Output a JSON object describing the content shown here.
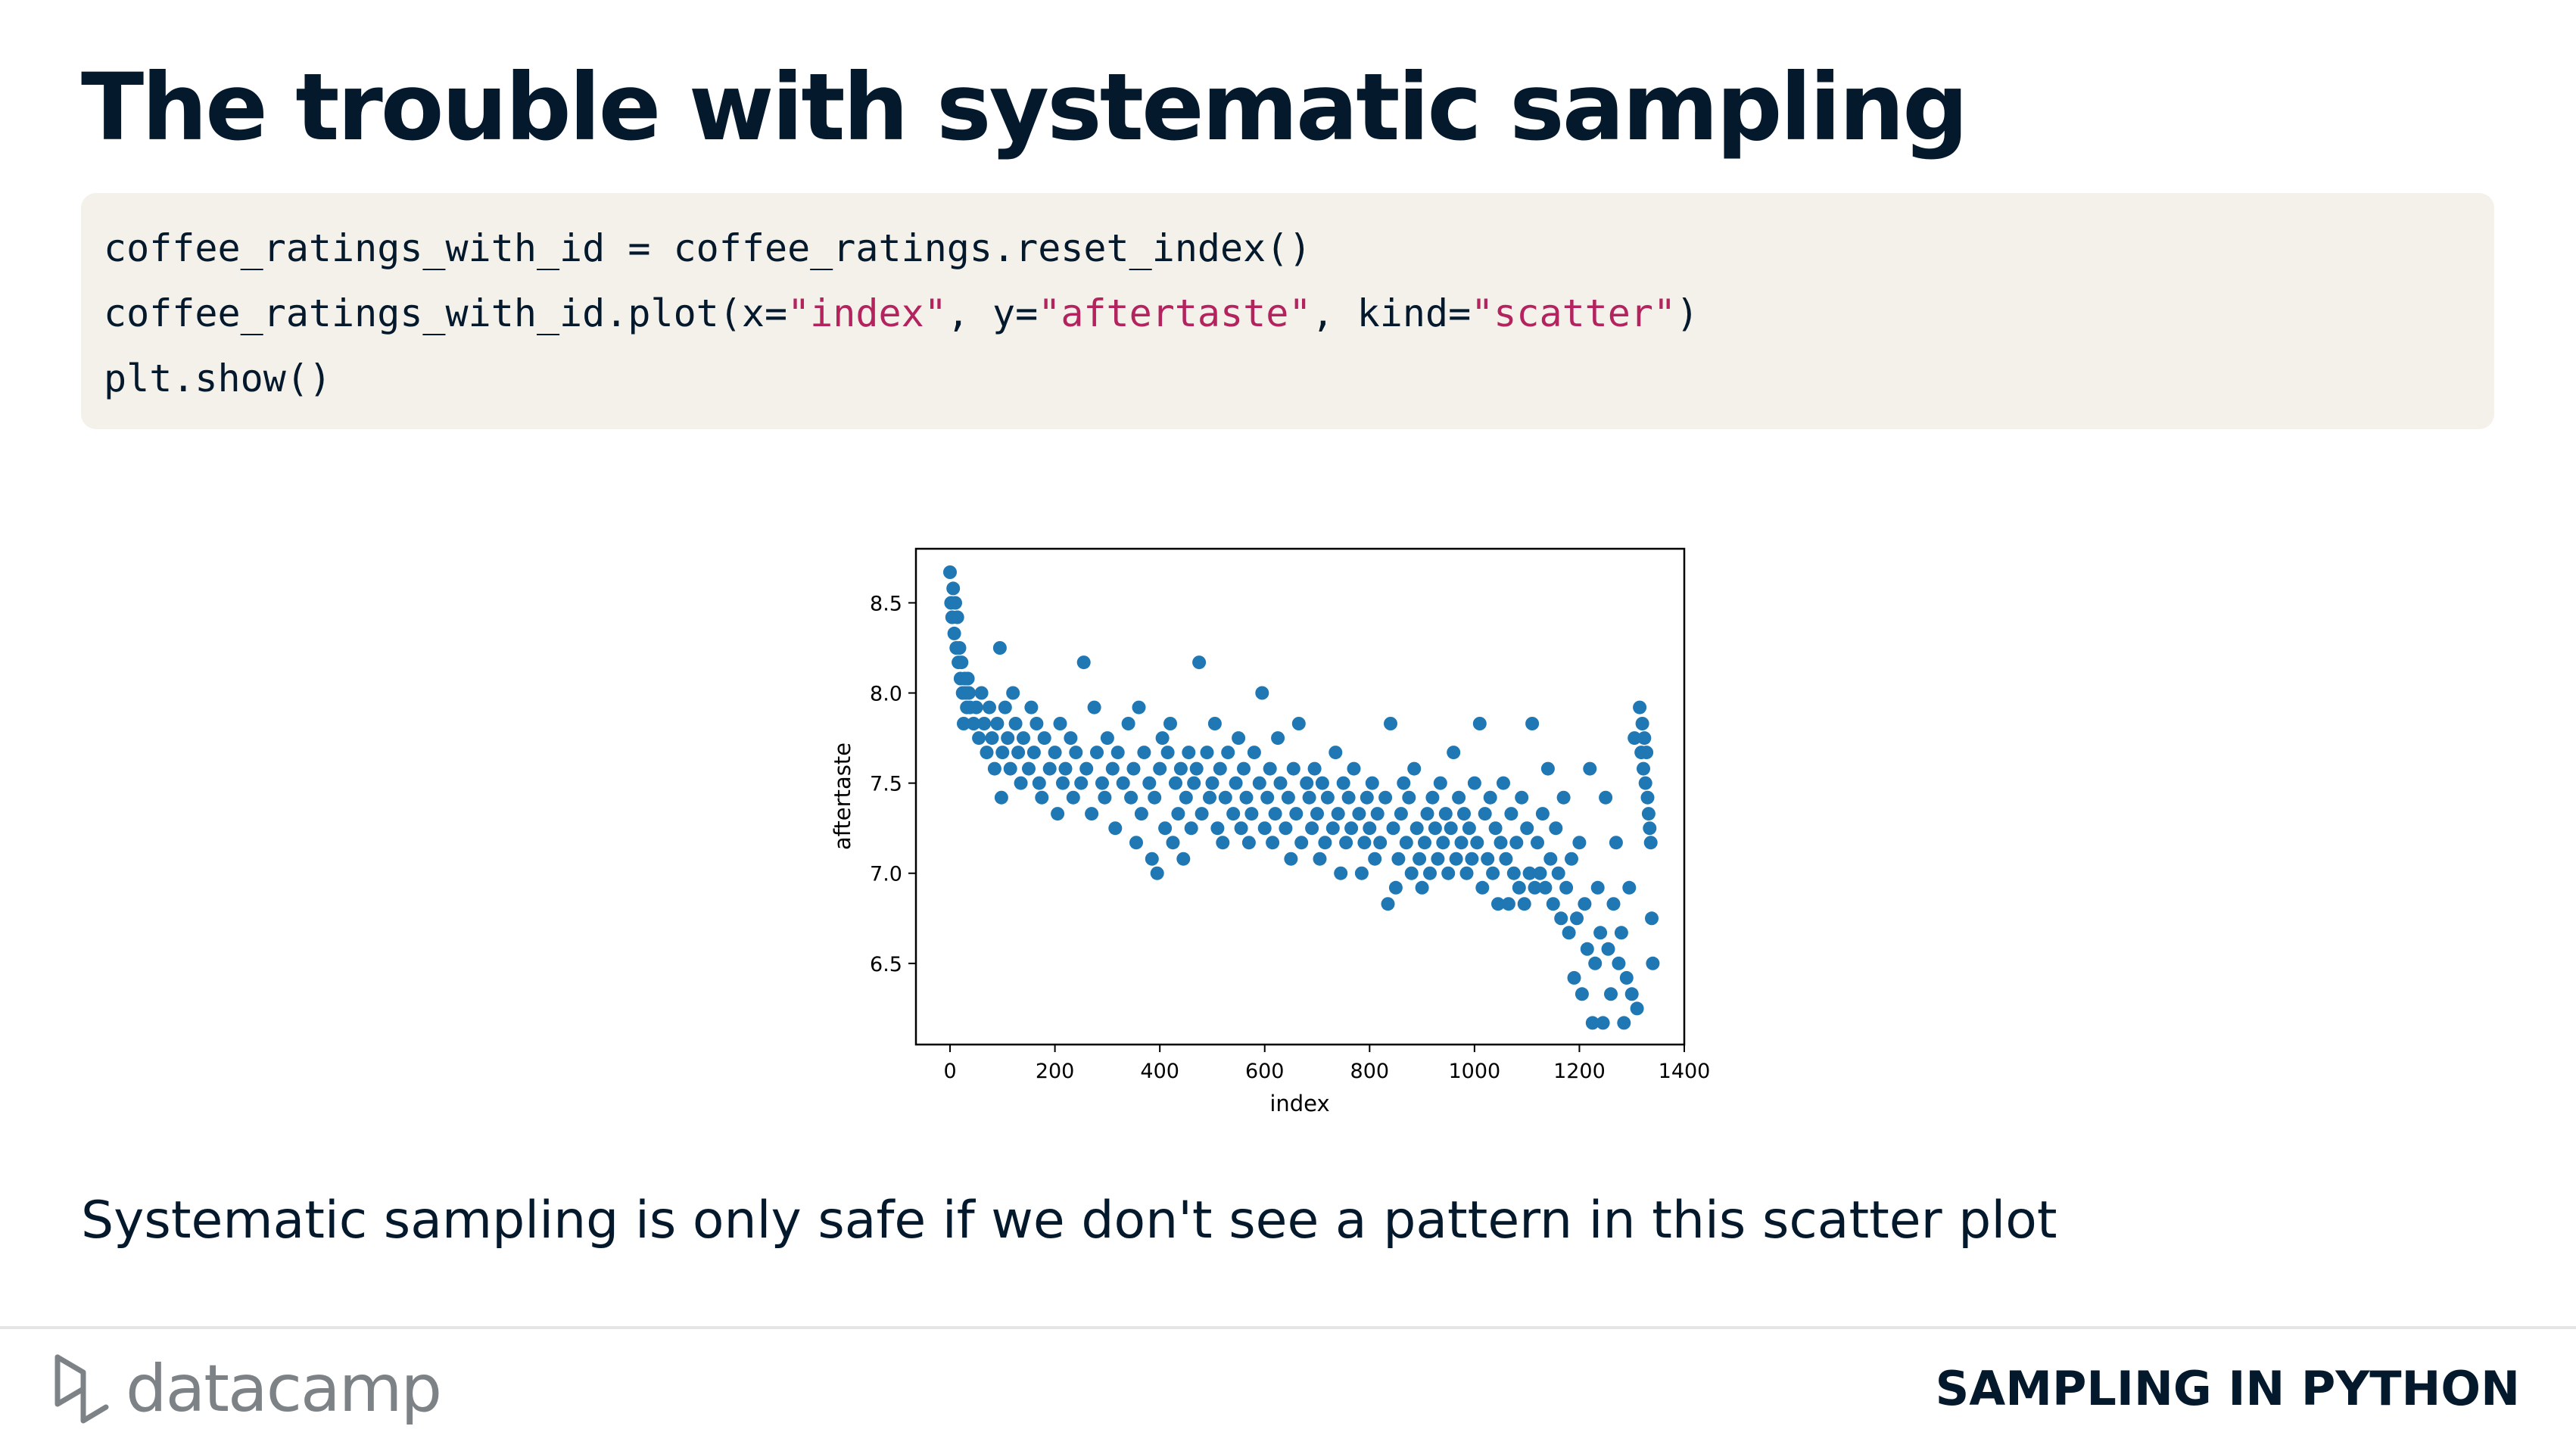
{
  "slide": {
    "title": "The trouble with systematic sampling",
    "caption": "Systematic sampling is only safe if we don't see a pattern in this scatter plot"
  },
  "code": {
    "line1": "coffee_ratings_with_id = coffee_ratings.reset_index()",
    "line2_a": "coffee_ratings_with_id.plot(x=",
    "line2_s1": "\"index\"",
    "line2_b": ", y=",
    "line2_s2": "\"aftertaste\"",
    "line2_c": ", kind=",
    "line2_s3": "\"scatter\"",
    "line2_d": ")",
    "line3": "plt.show()"
  },
  "footer": {
    "logo_text": "datacamp",
    "course": "SAMPLING IN PYTHON"
  },
  "colors": {
    "title": "#05192d",
    "code_bg": "#f4f1ea",
    "code_string": "#b3245f",
    "marker": "#1f77b4",
    "logo": "#7d8287"
  },
  "chart_data": {
    "type": "scatter",
    "title": "",
    "xlabel": "index",
    "ylabel": "aftertaste",
    "xlim": [
      -65,
      1400
    ],
    "ylim": [
      6.05,
      8.8
    ],
    "xticks": [
      0,
      200,
      400,
      600,
      800,
      1000,
      1200,
      1400
    ],
    "yticks": [
      6.5,
      7.0,
      7.5,
      8.0,
      8.5
    ],
    "ytick_labels": [
      "6.5",
      "7.0",
      "7.5",
      "8.0",
      "8.5"
    ],
    "grid": false,
    "legend": "none",
    "series": [
      {
        "points": [
          [
            0,
            8.67
          ],
          [
            2,
            8.5
          ],
          [
            4,
            8.42
          ],
          [
            6,
            8.58
          ],
          [
            8,
            8.33
          ],
          [
            10,
            8.5
          ],
          [
            12,
            8.25
          ],
          [
            14,
            8.42
          ],
          [
            16,
            8.17
          ],
          [
            18,
            8.25
          ],
          [
            20,
            8.08
          ],
          [
            22,
            8.17
          ],
          [
            24,
            8.0
          ],
          [
            26,
            7.83
          ],
          [
            28,
            8.08
          ],
          [
            30,
            8.0
          ],
          [
            32,
            7.92
          ],
          [
            34,
            8.08
          ],
          [
            36,
            8.0
          ],
          [
            38,
            7.92
          ],
          [
            45,
            7.83
          ],
          [
            50,
            7.92
          ],
          [
            55,
            7.75
          ],
          [
            60,
            8.0
          ],
          [
            65,
            7.83
          ],
          [
            70,
            7.67
          ],
          [
            75,
            7.92
          ],
          [
            80,
            7.75
          ],
          [
            85,
            7.58
          ],
          [
            90,
            7.83
          ],
          [
            95,
            8.25
          ],
          [
            98,
            7.42
          ],
          [
            100,
            7.67
          ],
          [
            105,
            7.92
          ],
          [
            110,
            7.75
          ],
          [
            115,
            7.58
          ],
          [
            120,
            8.0
          ],
          [
            125,
            7.83
          ],
          [
            130,
            7.67
          ],
          [
            135,
            7.5
          ],
          [
            140,
            7.75
          ],
          [
            150,
            7.58
          ],
          [
            155,
            7.92
          ],
          [
            160,
            7.67
          ],
          [
            165,
            7.83
          ],
          [
            170,
            7.5
          ],
          [
            175,
            7.42
          ],
          [
            180,
            7.75
          ],
          [
            190,
            7.58
          ],
          [
            200,
            7.67
          ],
          [
            205,
            7.33
          ],
          [
            210,
            7.83
          ],
          [
            215,
            7.5
          ],
          [
            220,
            7.58
          ],
          [
            230,
            7.75
          ],
          [
            235,
            7.42
          ],
          [
            240,
            7.67
          ],
          [
            250,
            7.5
          ],
          [
            255,
            8.17
          ],
          [
            260,
            7.58
          ],
          [
            270,
            7.33
          ],
          [
            275,
            7.92
          ],
          [
            280,
            7.67
          ],
          [
            290,
            7.5
          ],
          [
            295,
            7.42
          ],
          [
            300,
            7.75
          ],
          [
            310,
            7.58
          ],
          [
            315,
            7.25
          ],
          [
            320,
            7.67
          ],
          [
            330,
            7.5
          ],
          [
            340,
            7.83
          ],
          [
            345,
            7.42
          ],
          [
            350,
            7.58
          ],
          [
            355,
            7.17
          ],
          [
            360,
            7.92
          ],
          [
            365,
            7.33
          ],
          [
            370,
            7.67
          ],
          [
            380,
            7.5
          ],
          [
            385,
            7.08
          ],
          [
            390,
            7.42
          ],
          [
            395,
            7.0
          ],
          [
            400,
            7.58
          ],
          [
            405,
            7.75
          ],
          [
            410,
            7.25
          ],
          [
            415,
            7.67
          ],
          [
            420,
            7.83
          ],
          [
            425,
            7.17
          ],
          [
            430,
            7.5
          ],
          [
            435,
            7.33
          ],
          [
            440,
            7.58
          ],
          [
            445,
            7.08
          ],
          [
            450,
            7.42
          ],
          [
            455,
            7.67
          ],
          [
            460,
            7.25
          ],
          [
            465,
            7.5
          ],
          [
            470,
            7.58
          ],
          [
            475,
            8.17
          ],
          [
            480,
            7.33
          ],
          [
            490,
            7.67
          ],
          [
            495,
            7.42
          ],
          [
            500,
            7.5
          ],
          [
            505,
            7.83
          ],
          [
            510,
            7.25
          ],
          [
            515,
            7.58
          ],
          [
            520,
            7.17
          ],
          [
            525,
            7.42
          ],
          [
            530,
            7.67
          ],
          [
            540,
            7.33
          ],
          [
            545,
            7.5
          ],
          [
            550,
            7.75
          ],
          [
            555,
            7.25
          ],
          [
            560,
            7.58
          ],
          [
            565,
            7.42
          ],
          [
            570,
            7.17
          ],
          [
            575,
            7.33
          ],
          [
            580,
            7.67
          ],
          [
            590,
            7.5
          ],
          [
            595,
            8.0
          ],
          [
            600,
            7.25
          ],
          [
            605,
            7.42
          ],
          [
            610,
            7.58
          ],
          [
            615,
            7.17
          ],
          [
            620,
            7.33
          ],
          [
            625,
            7.75
          ],
          [
            630,
            7.5
          ],
          [
            640,
            7.25
          ],
          [
            645,
            7.42
          ],
          [
            650,
            7.08
          ],
          [
            655,
            7.58
          ],
          [
            660,
            7.33
          ],
          [
            665,
            7.83
          ],
          [
            670,
            7.17
          ],
          [
            680,
            7.5
          ],
          [
            685,
            7.42
          ],
          [
            690,
            7.25
          ],
          [
            695,
            7.58
          ],
          [
            700,
            7.33
          ],
          [
            705,
            7.08
          ],
          [
            710,
            7.5
          ],
          [
            715,
            7.17
          ],
          [
            720,
            7.42
          ],
          [
            730,
            7.25
          ],
          [
            735,
            7.67
          ],
          [
            740,
            7.33
          ],
          [
            745,
            7.0
          ],
          [
            750,
            7.5
          ],
          [
            755,
            7.17
          ],
          [
            760,
            7.42
          ],
          [
            765,
            7.25
          ],
          [
            770,
            7.58
          ],
          [
            780,
            7.33
          ],
          [
            785,
            7.0
          ],
          [
            790,
            7.17
          ],
          [
            795,
            7.42
          ],
          [
            800,
            7.25
          ],
          [
            805,
            7.5
          ],
          [
            810,
            7.08
          ],
          [
            815,
            7.33
          ],
          [
            820,
            7.17
          ],
          [
            830,
            7.42
          ],
          [
            835,
            6.83
          ],
          [
            840,
            7.83
          ],
          [
            845,
            7.25
          ],
          [
            850,
            6.92
          ],
          [
            855,
            7.08
          ],
          [
            860,
            7.33
          ],
          [
            865,
            7.5
          ],
          [
            870,
            7.17
          ],
          [
            875,
            7.42
          ],
          [
            880,
            7.0
          ],
          [
            885,
            7.58
          ],
          [
            890,
            7.25
          ],
          [
            895,
            7.08
          ],
          [
            900,
            6.92
          ],
          [
            905,
            7.17
          ],
          [
            910,
            7.33
          ],
          [
            915,
            7.0
          ],
          [
            920,
            7.42
          ],
          [
            925,
            7.25
          ],
          [
            930,
            7.08
          ],
          [
            935,
            7.5
          ],
          [
            940,
            7.17
          ],
          [
            945,
            7.33
          ],
          [
            950,
            7.0
          ],
          [
            955,
            7.25
          ],
          [
            960,
            7.67
          ],
          [
            965,
            7.08
          ],
          [
            970,
            7.42
          ],
          [
            975,
            7.17
          ],
          [
            980,
            7.33
          ],
          [
            985,
            7.0
          ],
          [
            990,
            7.25
          ],
          [
            995,
            7.08
          ],
          [
            1000,
            7.5
          ],
          [
            1005,
            7.17
          ],
          [
            1010,
            7.83
          ],
          [
            1015,
            6.92
          ],
          [
            1020,
            7.33
          ],
          [
            1025,
            7.08
          ],
          [
            1030,
            7.42
          ],
          [
            1035,
            7.0
          ],
          [
            1040,
            7.25
          ],
          [
            1045,
            6.83
          ],
          [
            1050,
            7.17
          ],
          [
            1055,
            7.5
          ],
          [
            1060,
            7.08
          ],
          [
            1065,
            6.83
          ],
          [
            1070,
            7.33
          ],
          [
            1075,
            7.0
          ],
          [
            1080,
            7.17
          ],
          [
            1085,
            6.92
          ],
          [
            1090,
            7.42
          ],
          [
            1095,
            6.83
          ],
          [
            1100,
            7.25
          ],
          [
            1105,
            7.0
          ],
          [
            1110,
            7.83
          ],
          [
            1115,
            6.92
          ],
          [
            1120,
            7.17
          ],
          [
            1125,
            7.0
          ],
          [
            1130,
            7.33
          ],
          [
            1135,
            6.92
          ],
          [
            1140,
            7.58
          ],
          [
            1145,
            7.08
          ],
          [
            1150,
            6.83
          ],
          [
            1155,
            7.25
          ],
          [
            1160,
            7.0
          ],
          [
            1165,
            6.75
          ],
          [
            1170,
            7.42
          ],
          [
            1175,
            6.92
          ],
          [
            1180,
            6.67
          ],
          [
            1185,
            7.08
          ],
          [
            1190,
            6.42
          ],
          [
            1195,
            6.75
          ],
          [
            1200,
            7.17
          ],
          [
            1205,
            6.33
          ],
          [
            1210,
            6.83
          ],
          [
            1215,
            6.58
          ],
          [
            1220,
            7.58
          ],
          [
            1225,
            6.17
          ],
          [
            1230,
            6.5
          ],
          [
            1235,
            6.92
          ],
          [
            1240,
            6.67
          ],
          [
            1245,
            6.17
          ],
          [
            1250,
            7.42
          ],
          [
            1255,
            6.58
          ],
          [
            1260,
            6.33
          ],
          [
            1265,
            6.83
          ],
          [
            1270,
            7.17
          ],
          [
            1275,
            6.5
          ],
          [
            1280,
            6.67
          ],
          [
            1285,
            6.17
          ],
          [
            1290,
            6.42
          ],
          [
            1295,
            6.92
          ],
          [
            1300,
            6.33
          ],
          [
            1305,
            7.75
          ],
          [
            1310,
            6.25
          ],
          [
            1315,
            7.92
          ],
          [
            1318,
            7.67
          ],
          [
            1320,
            7.83
          ],
          [
            1322,
            7.58
          ],
          [
            1324,
            7.75
          ],
          [
            1326,
            7.5
          ],
          [
            1328,
            7.67
          ],
          [
            1330,
            7.42
          ],
          [
            1332,
            7.33
          ],
          [
            1334,
            7.25
          ],
          [
            1336,
            7.17
          ],
          [
            1338,
            6.75
          ],
          [
            1340,
            6.5
          ]
        ]
      }
    ]
  }
}
